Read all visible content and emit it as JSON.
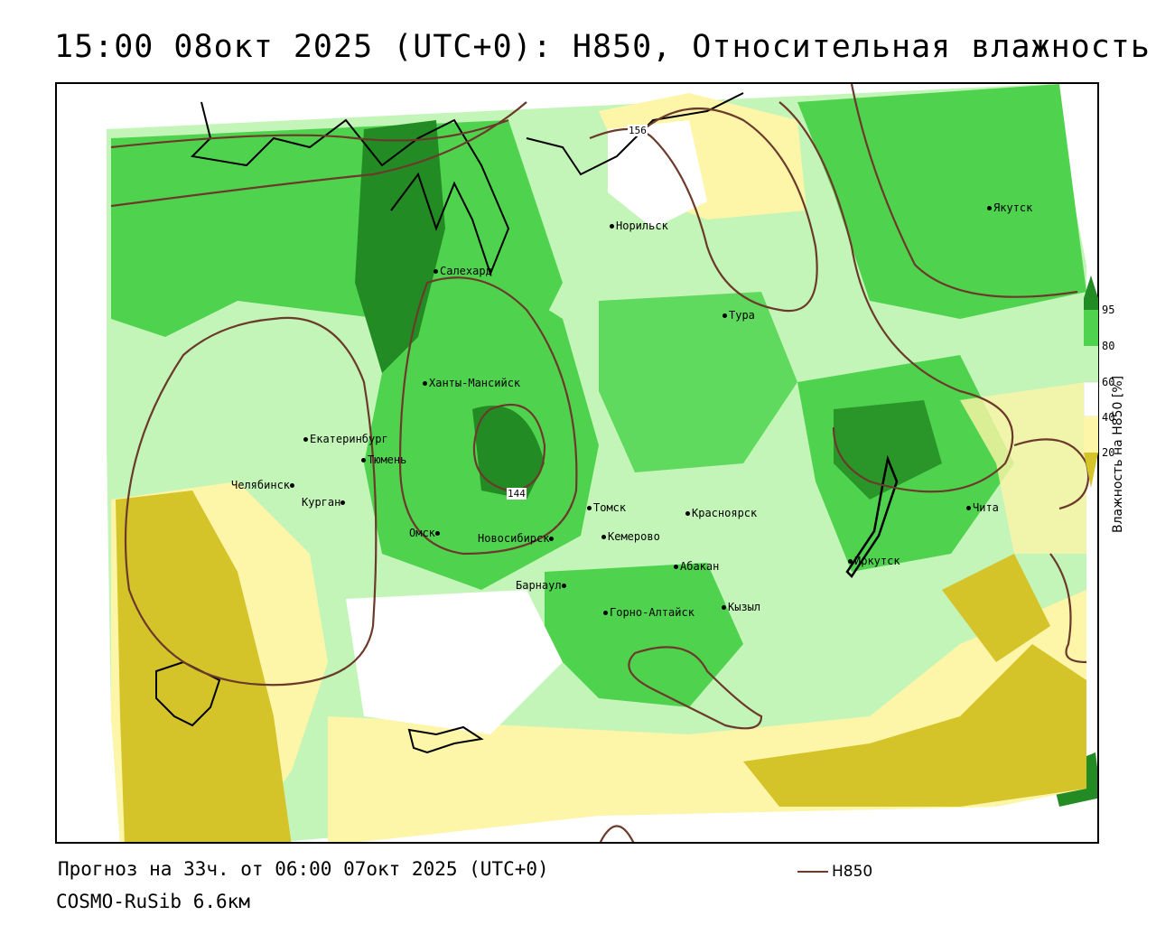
{
  "title": "15:00 08окт 2025 (UTC+0): H850, Относительная влажность",
  "footer": {
    "forecast": "Прогноз на 33ч. от 06:00 07окт 2025 (UTC+0)",
    "model": "COSMO-RuSib 6.6км",
    "legend_line_label": "H850"
  },
  "colorbar": {
    "title": "Влажность на H850 [%]",
    "ticks": [
      "95",
      "80",
      "60",
      "40",
      "20"
    ],
    "colors": [
      "#238b23",
      "#4fd34f",
      "#c4f5b8",
      "#ffffff",
      "#fdf5a8",
      "#d4c42a"
    ]
  },
  "contour_labels": [
    "156",
    "144"
  ],
  "cities": [
    {
      "name": "Норильск"
    },
    {
      "name": "Якутск"
    },
    {
      "name": "Салехард"
    },
    {
      "name": "Тура"
    },
    {
      "name": "Ханты-Мансийск"
    },
    {
      "name": "Екатеринбург"
    },
    {
      "name": "Тюмень"
    },
    {
      "name": "Челябинск"
    },
    {
      "name": "Курган"
    },
    {
      "name": "Омск"
    },
    {
      "name": "Новосибирск"
    },
    {
      "name": "Томск"
    },
    {
      "name": "Красноярск"
    },
    {
      "name": "Кемерово"
    },
    {
      "name": "Абакан"
    },
    {
      "name": "Иркутск"
    },
    {
      "name": "Чита"
    },
    {
      "name": "Барнаул"
    },
    {
      "name": "Горно-Алтайск"
    },
    {
      "name": "Кызыл"
    }
  ]
}
